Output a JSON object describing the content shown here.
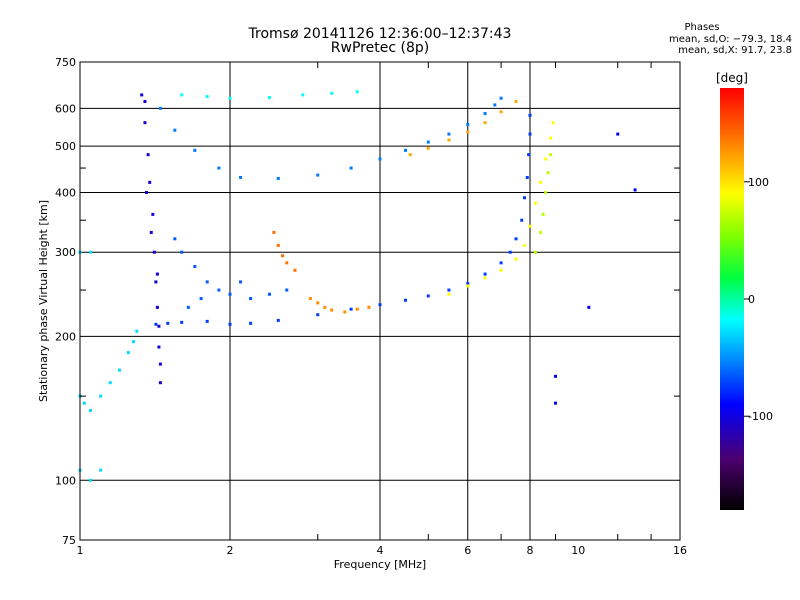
{
  "chart_data": {
    "type": "scatter",
    "title": "Tromsø 20141126 12:36:00–12:37:43",
    "subtitle": "RwPretec (8p)",
    "xlabel": "Frequency [MHz]",
    "ylabel": "Stationary phase Virtual Height [km]",
    "x_scale": "log",
    "y_scale": "log",
    "xlim": [
      1,
      16
    ],
    "ylim": [
      75,
      750
    ],
    "x_ticks": [
      1,
      2,
      4,
      6,
      8,
      10,
      16
    ],
    "x_tick_labels": [
      "1",
      "2",
      "4",
      "6",
      "8",
      "10",
      "16"
    ],
    "y_ticks": [
      75,
      100,
      200,
      300,
      400,
      500,
      600,
      750
    ],
    "y_tick_labels": [
      "75",
      "100",
      "200",
      "300",
      "400",
      "500",
      "600",
      "750"
    ],
    "grid": true,
    "colorbar": {
      "label": "[deg]",
      "range": [
        -180,
        180
      ],
      "ticks": [
        -100,
        0,
        100
      ],
      "tick_labels": [
        "-100",
        "0",
        "100"
      ]
    },
    "stats": {
      "title": "Phases",
      "line_o": "mean, sd,O: −79.3, 18.4",
      "line_x": "mean, sd,X:  91.7, 23.8"
    },
    "series": [
      {
        "color_value": -80,
        "points": [
          [
            1.42,
            212
          ],
          [
            1.5,
            213
          ],
          [
            1.6,
            214
          ],
          [
            1.8,
            215
          ],
          [
            2.0,
            212
          ],
          [
            2.2,
            213
          ],
          [
            2.5,
            216
          ],
          [
            3.0,
            222
          ],
          [
            3.5,
            228
          ],
          [
            4.0,
            233
          ],
          [
            4.5,
            238
          ],
          [
            5.0,
            243
          ],
          [
            5.5,
            250
          ],
          [
            6.0,
            258
          ],
          [
            6.5,
            270
          ],
          [
            7.0,
            285
          ],
          [
            7.3,
            300
          ],
          [
            7.5,
            320
          ],
          [
            7.7,
            350
          ],
          [
            7.8,
            390
          ],
          [
            7.9,
            430
          ],
          [
            7.95,
            480
          ],
          [
            8.0,
            530
          ],
          [
            8.0,
            580
          ]
        ]
      },
      {
        "color_value": -60,
        "points": [
          [
            1.45,
            600
          ],
          [
            1.55,
            540
          ],
          [
            1.7,
            490
          ],
          [
            1.9,
            450
          ],
          [
            2.1,
            430
          ],
          [
            2.5,
            428
          ],
          [
            3.0,
            435
          ],
          [
            3.5,
            450
          ],
          [
            4.0,
            470
          ],
          [
            4.5,
            490
          ],
          [
            5.0,
            510
          ],
          [
            5.5,
            530
          ],
          [
            6.0,
            555
          ],
          [
            6.5,
            585
          ],
          [
            6.8,
            610
          ],
          [
            7.0,
            630
          ]
        ]
      },
      {
        "color_value": -110,
        "points": [
          [
            1.33,
            640
          ],
          [
            1.35,
            560
          ],
          [
            1.37,
            480
          ],
          [
            1.38,
            420
          ],
          [
            1.4,
            360
          ],
          [
            1.41,
            300
          ],
          [
            1.42,
            260
          ],
          [
            1.43,
            230
          ],
          [
            1.44,
            210
          ],
          [
            1.44,
            190
          ],
          [
            1.45,
            175
          ],
          [
            1.45,
            160
          ],
          [
            1.35,
            620
          ],
          [
            1.36,
            400
          ],
          [
            1.39,
            330
          ],
          [
            1.43,
            270
          ]
        ]
      },
      {
        "color_value": -70,
        "points": [
          [
            1.55,
            320
          ],
          [
            1.6,
            300
          ],
          [
            1.7,
            280
          ],
          [
            1.8,
            260
          ],
          [
            1.9,
            250
          ],
          [
            2.0,
            245
          ],
          [
            2.2,
            240
          ],
          [
            2.4,
            245
          ],
          [
            2.6,
            250
          ],
          [
            1.65,
            230
          ],
          [
            1.75,
            240
          ],
          [
            2.1,
            260
          ]
        ]
      },
      {
        "color_value": -20,
        "points": [
          [
            1.6,
            640
          ],
          [
            1.8,
            635
          ],
          [
            2.0,
            630
          ],
          [
            2.4,
            632
          ],
          [
            2.8,
            640
          ],
          [
            3.2,
            645
          ],
          [
            3.6,
            650
          ]
        ]
      },
      {
        "color_value": -30,
        "points": [
          [
            1.0,
            150
          ],
          [
            1.02,
            145
          ],
          [
            1.05,
            140
          ],
          [
            1.1,
            150
          ],
          [
            1.15,
            160
          ],
          [
            1.2,
            170
          ],
          [
            1.25,
            185
          ],
          [
            1.28,
            195
          ],
          [
            1.3,
            205
          ],
          [
            1.0,
            105
          ],
          [
            1.05,
            100
          ],
          [
            1.1,
            105
          ],
          [
            1.0,
            300
          ],
          [
            1.05,
            300
          ]
        ]
      },
      {
        "color_value": 140,
        "points": [
          [
            2.45,
            330
          ],
          [
            2.5,
            310
          ],
          [
            2.55,
            295
          ],
          [
            2.6,
            285
          ],
          [
            2.7,
            275
          ]
        ]
      },
      {
        "color_value": 130,
        "points": [
          [
            2.9,
            240
          ],
          [
            3.0,
            235
          ],
          [
            3.1,
            230
          ],
          [
            3.2,
            227
          ],
          [
            3.4,
            225
          ],
          [
            3.6,
            228
          ],
          [
            3.8,
            230
          ]
        ]
      },
      {
        "color_value": 120,
        "points": [
          [
            4.6,
            480
          ],
          [
            5.0,
            495
          ],
          [
            5.5,
            515
          ],
          [
            6.0,
            535
          ],
          [
            6.5,
            560
          ],
          [
            7.0,
            590
          ],
          [
            7.5,
            620
          ]
        ]
      },
      {
        "color_value": 90,
        "points": [
          [
            5.5,
            245
          ],
          [
            6.0,
            255
          ],
          [
            6.5,
            265
          ],
          [
            7.0,
            275
          ],
          [
            7.5,
            290
          ],
          [
            7.8,
            310
          ],
          [
            8.0,
            340
          ],
          [
            8.2,
            380
          ],
          [
            8.4,
            420
          ],
          [
            8.6,
            470
          ],
          [
            8.8,
            520
          ],
          [
            8.9,
            560
          ]
        ]
      },
      {
        "color_value": 70,
        "points": [
          [
            8.2,
            300
          ],
          [
            8.4,
            330
          ],
          [
            8.5,
            360
          ],
          [
            8.6,
            400
          ],
          [
            8.7,
            440
          ],
          [
            8.8,
            480
          ]
        ]
      },
      {
        "color_value": -100,
        "points": [
          [
            9.0,
            165
          ],
          [
            9.0,
            145
          ],
          [
            10.5,
            230
          ],
          [
            13.0,
            405
          ],
          [
            12.0,
            530
          ]
        ]
      }
    ]
  }
}
